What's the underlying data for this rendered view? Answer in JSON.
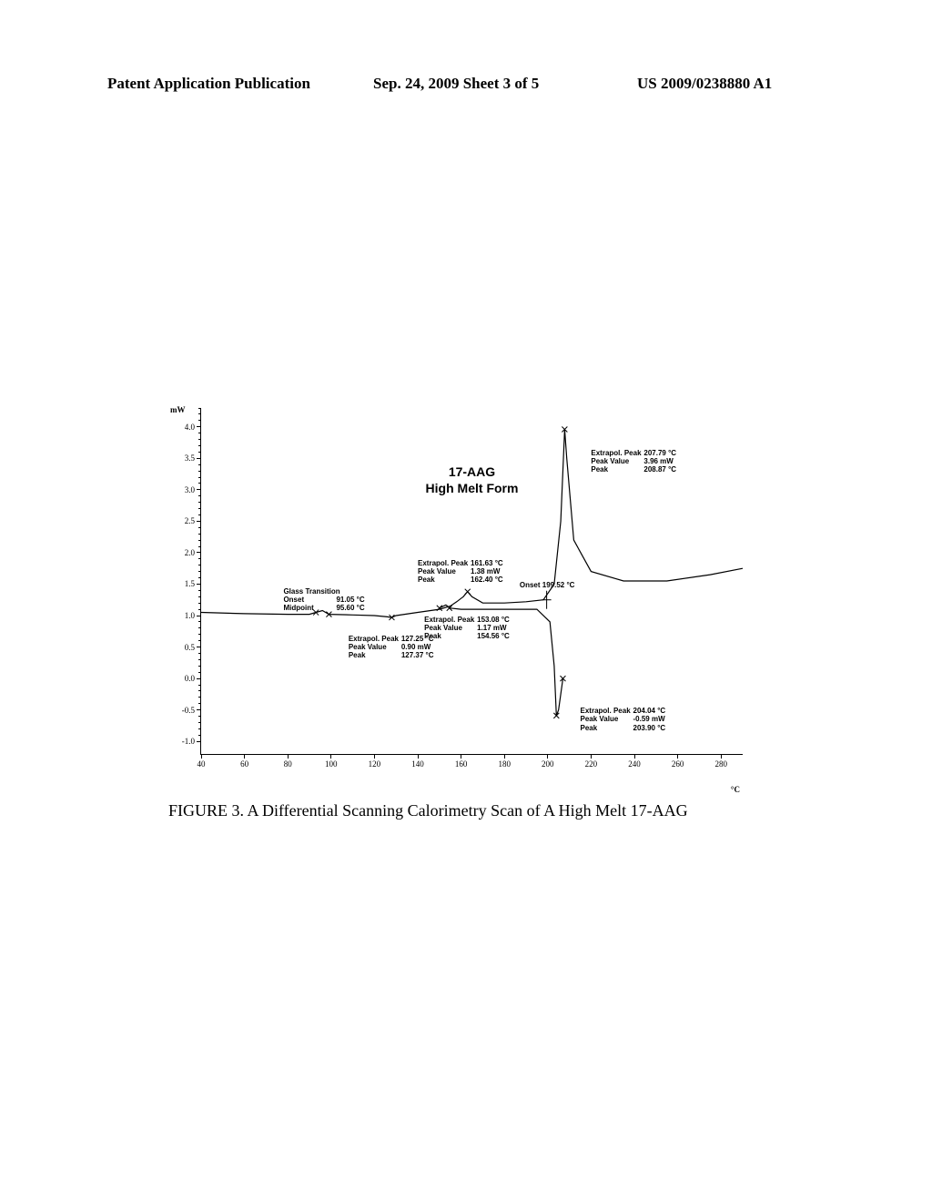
{
  "header": {
    "left": "Patent Application Publication",
    "mid": "Sep. 24, 2009  Sheet 3 of 5",
    "right": "US 2009/0238880 A1"
  },
  "chart": {
    "type": "line",
    "title_line1": "17-AAG",
    "title_line2": "High Melt Form",
    "y_unit": "mW",
    "x_unit": "°C",
    "xlim": [
      40,
      290
    ],
    "ylim": [
      -1.2,
      4.3
    ],
    "xticks": [
      40,
      60,
      80,
      100,
      120,
      140,
      160,
      180,
      200,
      220,
      240,
      260,
      280
    ],
    "yticks": [
      -1.0,
      -0.5,
      0.0,
      0.5,
      1.0,
      1.5,
      2.0,
      2.5,
      3.0,
      3.5,
      4.0
    ],
    "line_color": "#000000",
    "background_color": "#ffffff",
    "line_width": 1.2,
    "curves": {
      "upper": [
        [
          40,
          1.05
        ],
        [
          60,
          1.03
        ],
        [
          80,
          1.02
        ],
        [
          90,
          1.02
        ],
        [
          93,
          1.05
        ],
        [
          96,
          1.08
        ],
        [
          99,
          1.02
        ],
        [
          110,
          1.01
        ],
        [
          120,
          1.0
        ],
        [
          126,
          0.98
        ],
        [
          128,
          0.97
        ],
        [
          130,
          1.0
        ],
        [
          140,
          1.05
        ],
        [
          150,
          1.1
        ],
        [
          155,
          1.15
        ],
        [
          158,
          1.22
        ],
        [
          161,
          1.3
        ],
        [
          163,
          1.38
        ],
        [
          165,
          1.3
        ],
        [
          170,
          1.2
        ],
        [
          180,
          1.2
        ],
        [
          190,
          1.22
        ],
        [
          198,
          1.25
        ],
        [
          203,
          1.5
        ],
        [
          206,
          2.5
        ],
        [
          207.8,
          3.96
        ],
        [
          208.8,
          3.5
        ],
        [
          212,
          2.2
        ],
        [
          220,
          1.7
        ],
        [
          235,
          1.55
        ],
        [
          255,
          1.55
        ],
        [
          275,
          1.65
        ],
        [
          290,
          1.75
        ]
      ],
      "lower": [
        [
          150,
          1.12
        ],
        [
          153,
          1.17
        ],
        [
          154.6,
          1.12
        ],
        [
          160,
          1.1
        ],
        [
          180,
          1.1
        ],
        [
          195,
          1.1
        ],
        [
          201,
          0.9
        ],
        [
          203,
          0.2
        ],
        [
          204,
          -0.59
        ],
        [
          205,
          -0.5
        ],
        [
          207,
          0.0
        ]
      ]
    },
    "annotations": {
      "glass": {
        "title": "Glass Transition",
        "rows": [
          [
            "Onset",
            "91.05 °C"
          ],
          [
            "Midpoint",
            "95.60 °C"
          ]
        ],
        "pos_x_C": 78,
        "pos_y_mW": 1.45
      },
      "peak127": {
        "rows": [
          [
            "Extrapol. Peak",
            "127.25 °C"
          ],
          [
            "Peak Value",
            "0.90 mW"
          ],
          [
            "Peak",
            "127.37 °C"
          ]
        ],
        "pos_x_C": 108,
        "pos_y_mW": 0.7
      },
      "peak161": {
        "rows": [
          [
            "Extrapol. Peak",
            "161.63 °C"
          ],
          [
            "Peak Value",
            "1.38 mW"
          ],
          [
            "Peak",
            "162.40 °C"
          ]
        ],
        "pos_x_C": 140,
        "pos_y_mW": 1.9
      },
      "peak153": {
        "rows": [
          [
            "Extrapol. Peak",
            "153.08 °C"
          ],
          [
            "Peak Value",
            "1.17 mW"
          ],
          [
            "Peak",
            "154.56 °C"
          ]
        ],
        "pos_x_C": 143,
        "pos_y_mW": 1.0
      },
      "onset199": {
        "text": "Onset   199.52 °C",
        "pos_x_C": 187,
        "pos_y_mW": 1.55
      },
      "peak207": {
        "rows": [
          [
            "Extrapol. Peak",
            "207.79 °C"
          ],
          [
            "Peak Value",
            "3.96 mW"
          ],
          [
            "Peak",
            "208.87 °C"
          ]
        ],
        "pos_x_C": 220,
        "pos_y_mW": 3.65
      },
      "peak204": {
        "rows": [
          [
            "Extrapol. Peak",
            "204.04 °C"
          ],
          [
            "Peak Value",
            "-0.59 mW"
          ],
          [
            "Peak",
            "203.90 °C"
          ]
        ],
        "pos_x_C": 215,
        "pos_y_mW": -0.45
      }
    },
    "onset_marker": {
      "x_C": 199.5,
      "y_mW": 1.25
    }
  },
  "caption": "FIGURE 3.  A Differential Scanning Calorimetry Scan of A High Melt 17-AAG"
}
